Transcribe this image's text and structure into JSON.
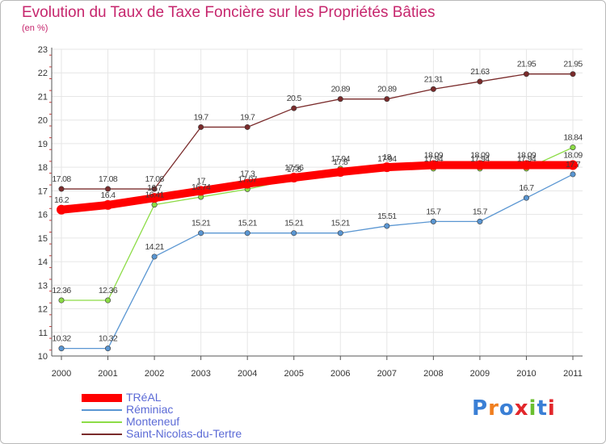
{
  "header": {
    "title": "Evolution du Taux de Taxe Foncière sur les Propriétés Bâties",
    "subtitle": "(en %)"
  },
  "logo": {
    "text": "Proxiti",
    "letter_colors": [
      "#3a7fd5",
      "#f07e1e",
      "#3a7fd5",
      "#e2262b",
      "#6bbf2f",
      "#3a7fd5",
      "#e2262b"
    ]
  },
  "chart_data": {
    "type": "line",
    "x": [
      "2000",
      "2001",
      "2002",
      "2003",
      "2004",
      "2005",
      "2006",
      "2007",
      "2008",
      "2009",
      "2010",
      "2011"
    ],
    "ylim": [
      10,
      23
    ],
    "yticks": [
      "10",
      "11",
      "12",
      "13",
      "14",
      "15",
      "16",
      "17",
      "18",
      "19",
      "20",
      "21",
      "22",
      "23"
    ],
    "grid": true,
    "legend_position": "bottom-left",
    "series": [
      {
        "name": "TRéAL",
        "color": "#ff0000",
        "values": [
          16.2,
          16.4,
          16.7,
          17,
          17.3,
          17.56,
          17.8,
          18,
          18.09,
          18.09,
          18.09,
          18.09
        ],
        "labels": [
          "16.2",
          "16.4",
          "16.7",
          "17",
          "17.3",
          "17.56",
          "17.8",
          "18",
          "18.09",
          "18.09",
          "18.09",
          "18.09"
        ]
      },
      {
        "name": "Réminiac",
        "color": "#5a96d2",
        "values": [
          10.32,
          10.32,
          14.21,
          15.21,
          15.21,
          15.21,
          15.21,
          15.51,
          15.7,
          15.7,
          16.7,
          17.7
        ],
        "labels": [
          "10.32",
          "10.32",
          "14.21",
          "15.21",
          "15.21",
          "15.21",
          "15.21",
          "15.51",
          "15.7",
          "15.7",
          "16.7",
          "17.7"
        ]
      },
      {
        "name": "Monteneuf",
        "color": "#8cdc46",
        "values": [
          12.36,
          12.36,
          16.41,
          16.74,
          17.07,
          17.5,
          17.94,
          17.94,
          17.94,
          17.94,
          17.94,
          18.84
        ],
        "labels": [
          "12.36",
          "12.36",
          "16.41",
          "16.74",
          "17.07",
          "17.5",
          "17.94",
          "17.94",
          "17.94",
          "17.94",
          "17.94",
          "18.84"
        ]
      },
      {
        "name": "Saint-Nicolas-du-Tertre",
        "color": "#7a2b2b",
        "values": [
          17.08,
          17.08,
          17.08,
          19.7,
          19.7,
          20.5,
          20.89,
          20.89,
          21.31,
          21.63,
          21.95,
          21.95
        ],
        "labels": [
          "17.08",
          "17.08",
          "17.08",
          "19.7",
          "19.7",
          "20.5",
          "20.89",
          "20.89",
          "21.31",
          "21.63",
          "21.95",
          "21.95"
        ]
      }
    ]
  }
}
